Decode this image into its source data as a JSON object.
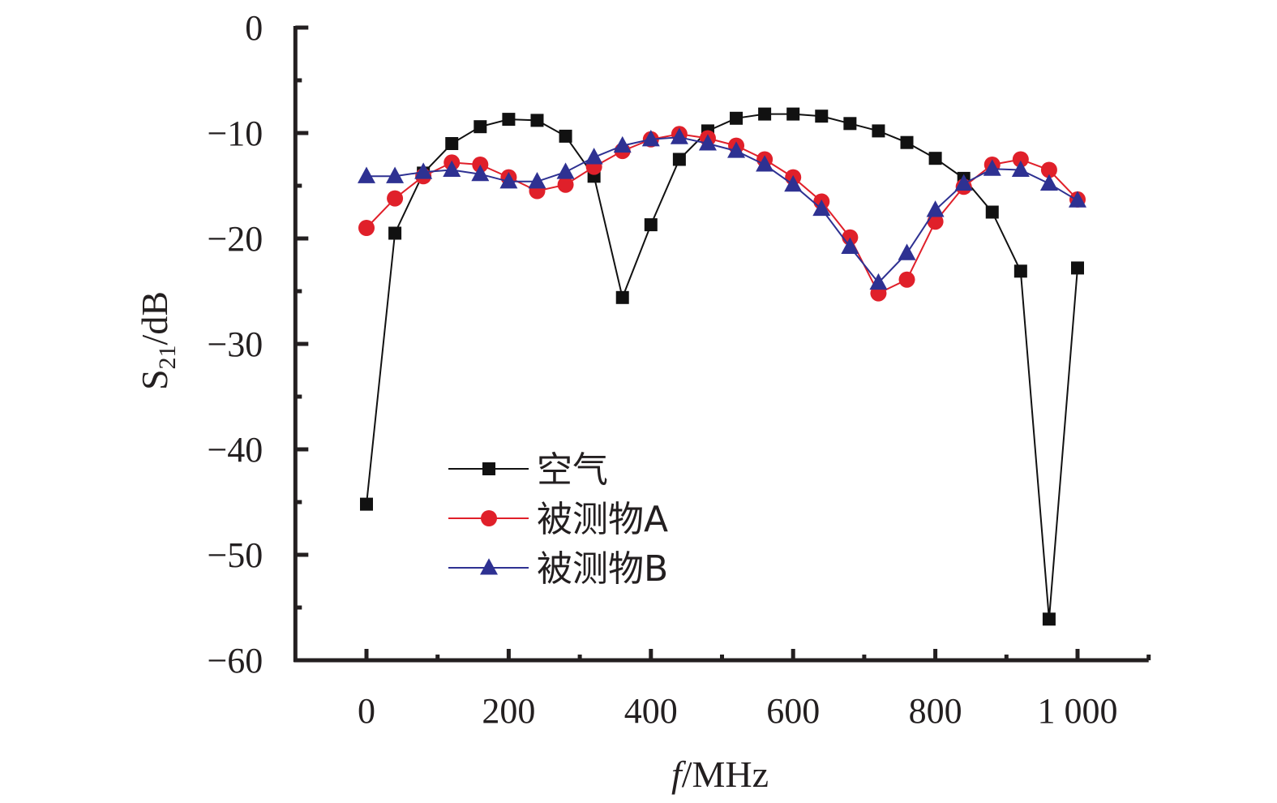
{
  "chart_data": {
    "type": "line",
    "title": "",
    "xlabel": "f/MHz",
    "xlabel_italic_part": "f",
    "xlabel_rest": "/MHz",
    "ylabel": "S21/dB",
    "ylabel_main": "S",
    "ylabel_sub": "21",
    "ylabel_rest": "/dB",
    "xlim": [
      -100,
      1100
    ],
    "ylim": [
      -60,
      0
    ],
    "x_ticks": [
      0,
      200,
      400,
      600,
      800,
      1000
    ],
    "x_tick_labels": [
      "0",
      "200",
      "400",
      "600",
      "800",
      "1 000"
    ],
    "x_minor_ticks": [
      100,
      300,
      500,
      700,
      900,
      1100
    ],
    "y_ticks": [
      0,
      -10,
      -20,
      -30,
      -40,
      -50,
      -60
    ],
    "y_tick_labels": [
      "0",
      "−10",
      "−20",
      "−30",
      "−40",
      "−50",
      "−60"
    ],
    "y_minor_ticks": [
      -5,
      -15,
      -25,
      -35,
      -45,
      -55
    ],
    "grid": false,
    "legend_position": "lower-left",
    "x": [
      0,
      40,
      80,
      120,
      160,
      200,
      240,
      280,
      320,
      360,
      400,
      440,
      480,
      520,
      560,
      600,
      640,
      680,
      720,
      760,
      800,
      840,
      880,
      920,
      960,
      1000
    ],
    "series": [
      {
        "name": "空气",
        "color": "#111111",
        "marker": "square",
        "values": [
          -45.2,
          -19.5,
          -13.8,
          -11.0,
          -9.4,
          -8.7,
          -8.8,
          -10.3,
          -14.1,
          -25.6,
          -18.7,
          -12.5,
          -9.8,
          -8.6,
          -8.2,
          -8.2,
          -8.4,
          -9.1,
          -9.8,
          -10.9,
          -12.4,
          -14.3,
          -17.5,
          -23.1,
          -56.1,
          -22.8
        ]
      },
      {
        "name": "被测物A",
        "color": "#e0202a",
        "marker": "circle",
        "values": [
          -19.0,
          -16.2,
          -14.1,
          -12.8,
          -13.0,
          -14.2,
          -15.5,
          -14.9,
          -13.2,
          -11.7,
          -10.6,
          -10.1,
          -10.5,
          -11.2,
          -12.5,
          -14.2,
          -16.5,
          -19.9,
          -25.2,
          -23.9,
          -18.4,
          -15.1,
          -13.0,
          -12.5,
          -13.5,
          -16.3
        ]
      },
      {
        "name": "被测物B",
        "color": "#2e3192",
        "marker": "triangle",
        "values": [
          -14.1,
          -14.1,
          -13.7,
          -13.5,
          -13.9,
          -14.6,
          -14.6,
          -13.7,
          -12.3,
          -11.2,
          -10.6,
          -10.4,
          -11.0,
          -11.7,
          -13.0,
          -14.9,
          -17.2,
          -20.8,
          -24.2,
          -21.4,
          -17.3,
          -14.8,
          -13.4,
          -13.5,
          -14.8,
          -16.4
        ]
      }
    ]
  }
}
